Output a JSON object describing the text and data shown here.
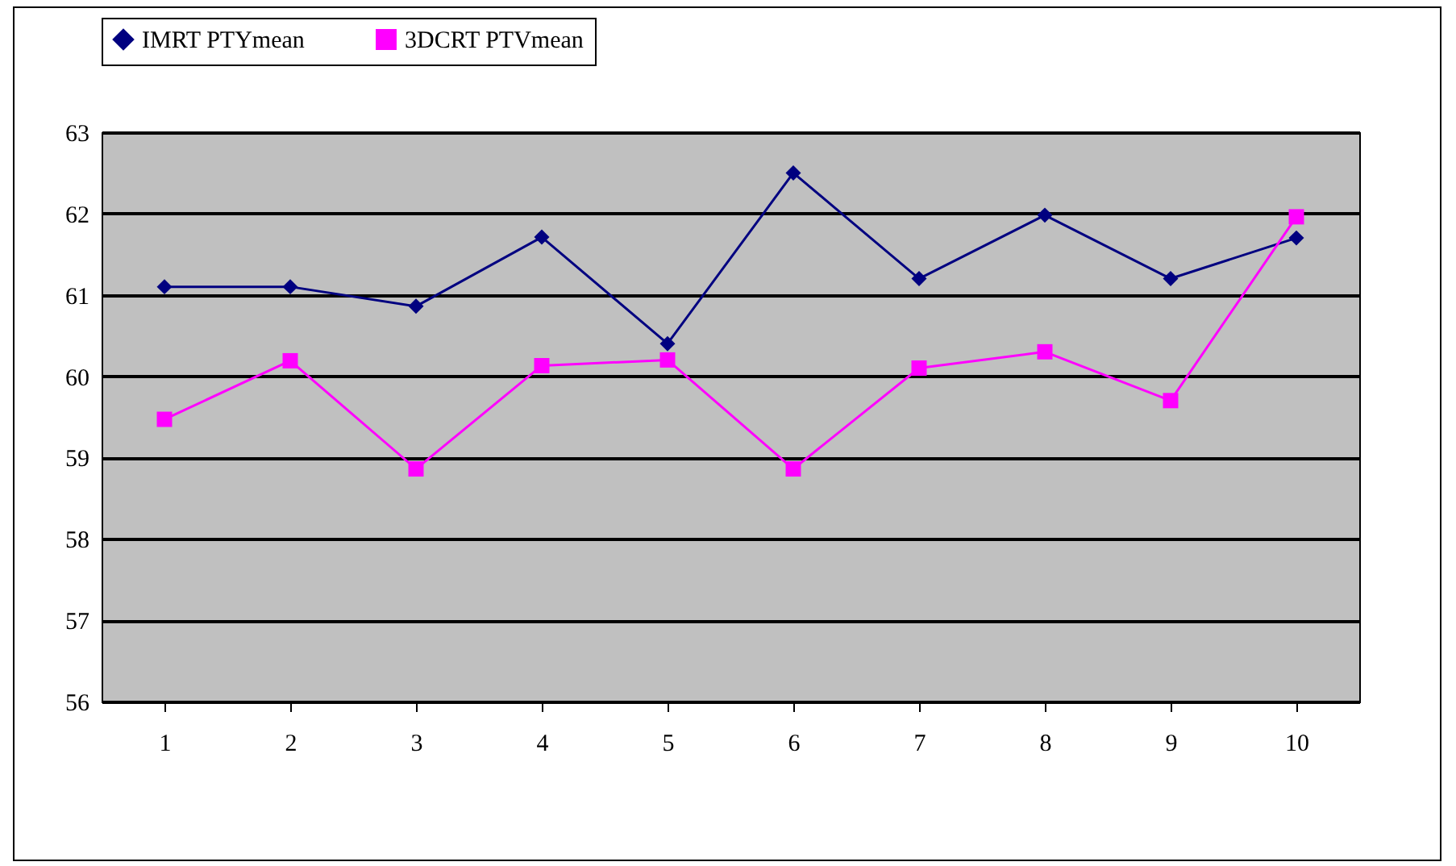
{
  "chart_data": {
    "type": "line",
    "categories": [
      "1",
      "2",
      "3",
      "4",
      "5",
      "6",
      "7",
      "8",
      "9",
      "10"
    ],
    "series": [
      {
        "name": "IMRT PTYmean",
        "color": "#000080",
        "marker": "diamond",
        "values": [
          61.1,
          61.1,
          60.86,
          61.71,
          60.4,
          62.5,
          61.2,
          61.98,
          61.2,
          61.7
        ]
      },
      {
        "name": "3DCRT PTVmean",
        "color": "#ff00ff",
        "marker": "square",
        "values": [
          59.47,
          60.19,
          58.86,
          60.13,
          60.2,
          58.86,
          60.1,
          60.3,
          59.7,
          61.96
        ]
      }
    ],
    "ylim": [
      56,
      63
    ],
    "yticks": [
      56,
      57,
      58,
      59,
      60,
      61,
      62,
      63
    ],
    "grid": "y",
    "legend": "top",
    "line_style": "solid"
  }
}
